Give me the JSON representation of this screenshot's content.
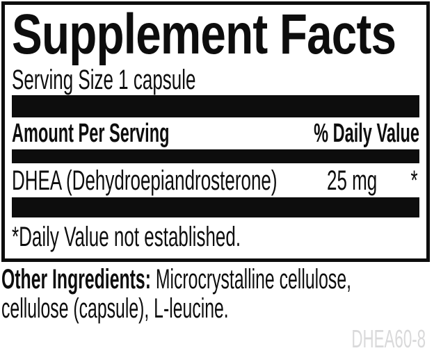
{
  "panel": {
    "title": "Supplement Facts",
    "serving_size": "Serving Size 1 capsule",
    "columns": {
      "amount_header": "Amount Per Serving",
      "daily_value_header": "% Daily Value"
    },
    "rows": [
      {
        "name": "DHEA (Dehydroepiandrosterone)",
        "amount": "25 mg",
        "daily_value": "*"
      }
    ],
    "footnote": "*Daily Value not established."
  },
  "other_ingredients": {
    "label": "Other Ingredients:",
    "text": "Microcrystalline cellulose, cellulose (capsule), L-leucine."
  },
  "product_code": "DHEA60-8",
  "colors": {
    "ink": "#0d0d0d",
    "background": "#ffffff",
    "muted": "#d9d9da"
  }
}
